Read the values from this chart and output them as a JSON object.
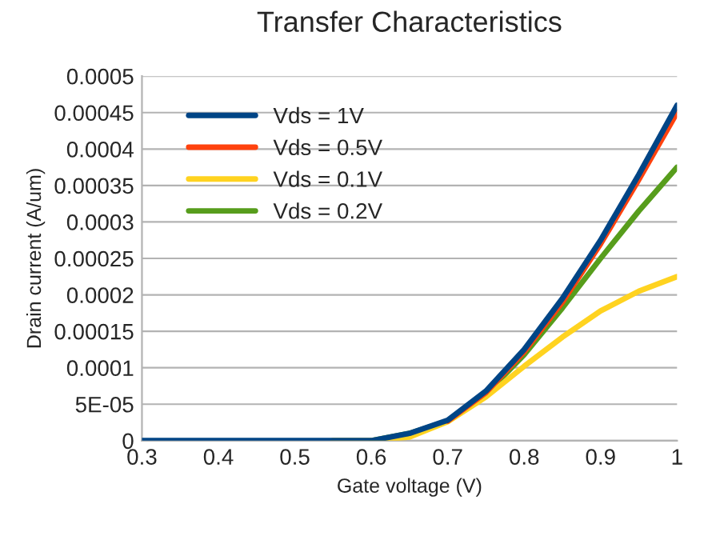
{
  "chart_data": {
    "type": "line",
    "title": "Transfer Characteristics",
    "xlabel": "Gate voltage (V)",
    "ylabel": "Drain current (A/um)",
    "x": [
      0.3,
      0.35,
      0.4,
      0.45,
      0.5,
      0.55,
      0.6,
      0.65,
      0.7,
      0.75,
      0.8,
      0.85,
      0.9,
      0.95,
      1
    ],
    "series": [
      {
        "name": "Vds = 1V",
        "color": "#004586",
        "values": [
          0,
          0,
          0,
          0,
          0,
          0,
          0,
          1e-05,
          2.8e-05,
          6.8e-05,
          0.000125,
          0.000195,
          0.000275,
          0.000365,
          0.00046
        ]
      },
      {
        "name": "Vds = 0.5V",
        "color": "#ff420e",
        "values": [
          null,
          null,
          null,
          null,
          null,
          null,
          null,
          null,
          2.7e-05,
          6.6e-05,
          0.000122,
          0.00019,
          0.00027,
          0.000358,
          0.00045
        ]
      },
      {
        "name": "Vds = 0.1V",
        "color": "#ffd320",
        "values": [
          null,
          null,
          null,
          null,
          null,
          0,
          0,
          5e-06,
          2.6e-05,
          6e-05,
          0.000102,
          0.000142,
          0.000178,
          0.000205,
          0.000225
        ]
      },
      {
        "name": "Vds = 0.2V",
        "color": "#579d1c",
        "values": [
          null,
          null,
          null,
          null,
          null,
          null,
          0,
          1e-05,
          2.7e-05,
          6.4e-05,
          0.000118,
          0.000182,
          0.00025,
          0.000315,
          0.000375
        ]
      }
    ],
    "xlim": [
      0.3,
      1
    ],
    "xticks": [
      0.3,
      0.4,
      0.5,
      0.6,
      0.7,
      0.8,
      0.9,
      1
    ],
    "ylim": [
      0,
      0.0005
    ],
    "yticks": [
      0,
      {
        "value": 5e-05,
        "label": "5E-05"
      },
      0.0001,
      0.00015,
      0.0002,
      0.00025,
      0.0003,
      0.00035,
      0.0004,
      0.00045,
      0.0005
    ],
    "grid": "y",
    "legend": "top left",
    "marker": "none",
    "line_style": "solid"
  }
}
